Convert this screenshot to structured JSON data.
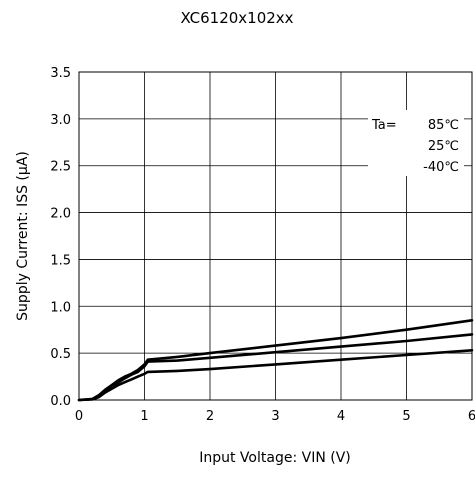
{
  "chart_data": {
    "type": "line",
    "title": "XC6120x102xx",
    "xlabel": "Input Voltage: VIN (V)",
    "ylabel": "Supply Current: ISS (μA)",
    "xlim": [
      0,
      6
    ],
    "ylim": [
      0,
      3.5
    ],
    "x_ticks": [
      "0",
      "1",
      "2",
      "3",
      "4",
      "5",
      "6"
    ],
    "y_ticks": [
      "0.0",
      "0.5",
      "1.0",
      "1.5",
      "2.0",
      "2.5",
      "3.0",
      "3.5"
    ],
    "grid": true,
    "legend_prefix": "Ta=",
    "legend_position": "top-right",
    "series": [
      {
        "name": "85℃",
        "x": [
          0,
          0.2,
          0.3,
          0.4,
          0.5,
          0.6,
          0.7,
          0.8,
          0.9,
          1.0,
          1.05,
          1.5,
          2,
          3,
          4,
          5,
          6
        ],
        "y": [
          0,
          0.01,
          0.05,
          0.11,
          0.16,
          0.21,
          0.25,
          0.28,
          0.32,
          0.38,
          0.43,
          0.46,
          0.5,
          0.58,
          0.66,
          0.75,
          0.85
        ]
      },
      {
        "name": "25℃",
        "x": [
          0,
          0.2,
          0.3,
          0.4,
          0.5,
          0.6,
          0.7,
          0.8,
          0.9,
          1.0,
          1.05,
          1.5,
          2,
          3,
          4,
          5,
          6
        ],
        "y": [
          0,
          0.01,
          0.04,
          0.1,
          0.15,
          0.19,
          0.23,
          0.27,
          0.3,
          0.36,
          0.41,
          0.42,
          0.45,
          0.51,
          0.57,
          0.63,
          0.7
        ]
      },
      {
        "name": "-40℃",
        "x": [
          0,
          0.2,
          0.3,
          0.4,
          0.5,
          0.6,
          0.7,
          0.8,
          0.9,
          1.0,
          1.05,
          1.5,
          2,
          3,
          4,
          5,
          6
        ],
        "y": [
          0,
          0.005,
          0.03,
          0.08,
          0.12,
          0.16,
          0.19,
          0.22,
          0.25,
          0.28,
          0.3,
          0.31,
          0.33,
          0.38,
          0.43,
          0.48,
          0.53
        ]
      }
    ]
  }
}
